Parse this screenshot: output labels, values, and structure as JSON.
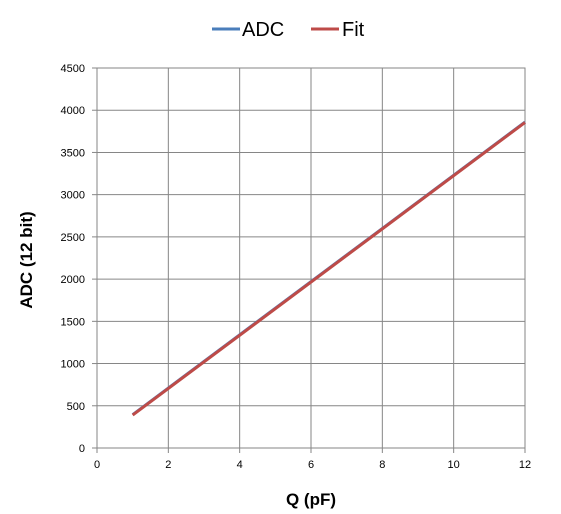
{
  "chart_data": {
    "type": "line",
    "title": "",
    "xlabel": "Q (pF)",
    "ylabel": "ADC (12 bit)",
    "xlim": [
      0,
      12
    ],
    "ylim": [
      0,
      4500
    ],
    "x_ticks": [
      0,
      2,
      4,
      6,
      8,
      10,
      12
    ],
    "y_ticks": [
      0,
      500,
      1000,
      1500,
      2000,
      2500,
      3000,
      3500,
      4000,
      4500
    ],
    "grid": true,
    "legend_position": "top",
    "series": [
      {
        "name": "ADC",
        "color": "#4a7ebb",
        "x": [
          1,
          12
        ],
        "y": [
          395,
          3860
        ]
      },
      {
        "name": "Fit",
        "color": "#be4b48",
        "x": [
          1,
          12
        ],
        "y": [
          390,
          3855
        ]
      }
    ]
  }
}
